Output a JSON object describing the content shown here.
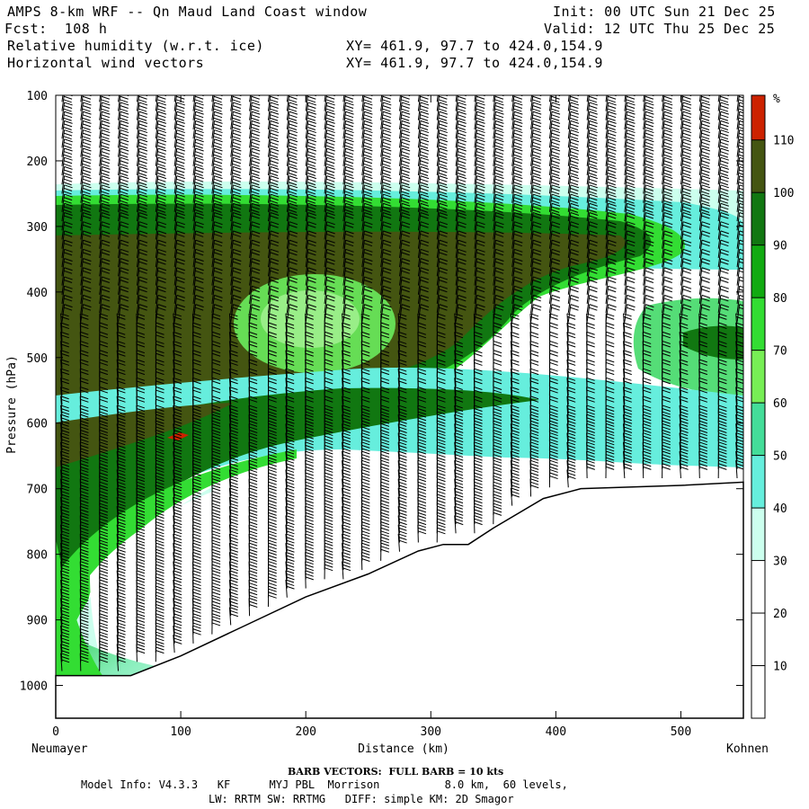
{
  "header": {
    "title": "AMPS 8-km WRF -- Qn Maud Land Coast window",
    "forecast": "Fcst:  108 h",
    "init": "Init: 00 UTC Sun 21 Dec 25",
    "valid": "Valid: 12 UTC Thu 25 Dec 25",
    "field1": "Relative humidity (w.r.t. ice)",
    "field2": "Horizontal wind vectors",
    "xy1": "XY= 461.9, 97.7 to 424.0,154.9",
    "xy2": "XY= 461.9, 97.7 to 424.0,154.9"
  },
  "chart_data": {
    "type": "heatmap",
    "xlabel": "Distance (km)",
    "ylabel": "Pressure (hPa)",
    "x_ticks": [
      0,
      100,
      200,
      300,
      400,
      500
    ],
    "xlim": [
      0,
      550
    ],
    "y_ticks": [
      100,
      200,
      300,
      400,
      500,
      600,
      700,
      800,
      900,
      1000
    ],
    "ylim": [
      100,
      1050
    ],
    "left_endpoint": "Neumayer",
    "right_endpoint": "Kohnen",
    "colorbar": {
      "unit": "%",
      "levels": [
        10,
        20,
        30,
        40,
        50,
        60,
        70,
        80,
        90,
        100,
        110
      ],
      "colors": [
        "#ffffff",
        "#ffffff",
        "#ffffff",
        "#ccffee",
        "#66eedd",
        "#44dd99",
        "#77ee55",
        "#33dd33",
        "#11aa11",
        "#117711",
        "#445511",
        "#cc2200"
      ]
    },
    "terrain_surface": [
      {
        "x": 0,
        "p": 985
      },
      {
        "x": 60,
        "p": 985
      },
      {
        "x": 100,
        "p": 955
      },
      {
        "x": 150,
        "p": 910
      },
      {
        "x": 200,
        "p": 865
      },
      {
        "x": 250,
        "p": 830
      },
      {
        "x": 290,
        "p": 795
      },
      {
        "x": 310,
        "p": 785
      },
      {
        "x": 330,
        "p": 785
      },
      {
        "x": 350,
        "p": 760
      },
      {
        "x": 390,
        "p": 715
      },
      {
        "x": 420,
        "p": 700
      },
      {
        "x": 500,
        "p": 695
      },
      {
        "x": 550,
        "p": 690
      }
    ],
    "barb_columns_x": [
      5,
      20,
      35,
      50,
      65,
      80,
      95,
      110,
      125,
      140,
      155,
      170,
      185,
      200,
      215,
      230,
      245,
      260,
      275,
      290,
      305,
      320,
      335,
      350,
      365,
      380,
      395,
      410,
      425,
      440,
      455,
      470,
      485,
      500,
      515,
      530,
      545
    ]
  },
  "footer": {
    "barb_note": "BARB VECTORS:  FULL BARB = 10 kts",
    "model_info": "Model Info: V4.3.3   KF      MYJ PBL  Morrison          8.0 km,  60 levels,",
    "physics": "LW: RRTM SW: RRTMG   DIFF: simple KM: 2D Smagor"
  }
}
